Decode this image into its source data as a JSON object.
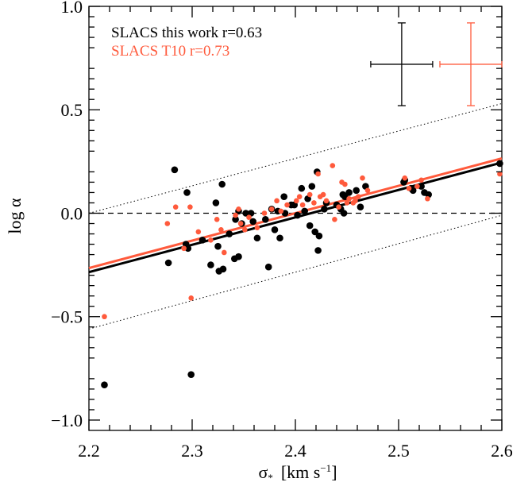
{
  "chart_data": {
    "type": "scatter",
    "xlabel": "σ",
    "xlabel_sub": "*",
    "xlabel_unit": "[km s",
    "xlabel_unit_sup": "−1",
    "xlabel_unit_close": "]",
    "ylabel": "log α",
    "xlim": [
      2.2,
      2.6
    ],
    "ylim": [
      -1.05,
      1.0
    ],
    "xticks": [
      2.2,
      2.3,
      2.4,
      2.5,
      2.6
    ],
    "xtick_labels": [
      "2.2",
      "2.3",
      "2.4",
      "2.5",
      "2.6"
    ],
    "yticks": [
      1.0,
      0.5,
      0.0,
      -0.5,
      -1.0
    ],
    "ytick_labels": [
      "1.0",
      "0.5",
      "0.0",
      "−0.5",
      "−1.0"
    ],
    "grid": false,
    "legend_position": "top-left",
    "series": [
      {
        "name": "SLACS this work  r=0.63",
        "color": "#000000",
        "points": [
          [
            2.215,
            -0.83
          ],
          [
            2.283,
            0.21
          ],
          [
            2.295,
            0.1
          ],
          [
            2.294,
            -0.15
          ],
          [
            2.296,
            -0.17
          ],
          [
            2.299,
            -0.78
          ],
          [
            2.277,
            -0.24
          ],
          [
            2.31,
            -0.13
          ],
          [
            2.318,
            -0.25
          ],
          [
            2.323,
            0.05
          ],
          [
            2.325,
            -0.16
          ],
          [
            2.326,
            -0.28
          ],
          [
            2.329,
            0.14
          ],
          [
            2.33,
            -0.27
          ],
          [
            2.336,
            -0.1
          ],
          [
            2.341,
            -0.22
          ],
          [
            2.342,
            -0.03
          ],
          [
            2.345,
            0.01
          ],
          [
            2.345,
            -0.21
          ],
          [
            2.348,
            -0.05
          ],
          [
            2.352,
            0.0
          ],
          [
            2.357,
            0.0
          ],
          [
            2.359,
            -0.04
          ],
          [
            2.363,
            -0.12
          ],
          [
            2.371,
            -0.03
          ],
          [
            2.374,
            -0.26
          ],
          [
            2.377,
            0.02
          ],
          [
            2.38,
            -0.08
          ],
          [
            2.383,
            0.01
          ],
          [
            2.385,
            -0.12
          ],
          [
            2.389,
            0.08
          ],
          [
            2.39,
            0.0
          ],
          [
            2.396,
            0.04
          ],
          [
            2.399,
            0.04
          ],
          [
            2.402,
            -0.01
          ],
          [
            2.406,
            0.12
          ],
          [
            2.409,
            0.01
          ],
          [
            2.412,
            0.07
          ],
          [
            2.414,
            -0.06
          ],
          [
            2.416,
            0.13
          ],
          [
            2.419,
            -0.09
          ],
          [
            2.421,
            0.2
          ],
          [
            2.422,
            -0.18
          ],
          [
            2.423,
            -0.11
          ],
          [
            2.428,
            0.02
          ],
          [
            2.43,
            0.05
          ],
          [
            2.44,
            0.04
          ],
          [
            2.444,
            0.02
          ],
          [
            2.446,
            0.09
          ],
          [
            2.447,
            0.0
          ],
          [
            2.448,
            0.08
          ],
          [
            2.452,
            0.1
          ],
          [
            2.459,
            0.11
          ],
          [
            2.463,
            0.03
          ],
          [
            2.468,
            0.13
          ],
          [
            2.505,
            0.15
          ],
          [
            2.506,
            0.16
          ],
          [
            2.512,
            0.12
          ],
          [
            2.514,
            0.11
          ],
          [
            2.522,
            0.13
          ],
          [
            2.525,
            0.1
          ],
          [
            2.529,
            0.09
          ],
          [
            2.598,
            0.24
          ]
        ]
      },
      {
        "name": "SLACS T10  r=0.73",
        "color": "#ff5a3c",
        "points": [
          [
            2.215,
            -0.5
          ],
          [
            2.276,
            -0.05
          ],
          [
            2.284,
            0.03
          ],
          [
            2.298,
            0.03
          ],
          [
            2.299,
            -0.41
          ],
          [
            2.292,
            -0.17
          ],
          [
            2.306,
            -0.09
          ],
          [
            2.318,
            -0.13
          ],
          [
            2.324,
            -0.03
          ],
          [
            2.328,
            -0.08
          ],
          [
            2.331,
            -0.19
          ],
          [
            2.342,
            -0.01
          ],
          [
            2.345,
            0.02
          ],
          [
            2.347,
            -0.05
          ],
          [
            2.351,
            -0.08
          ],
          [
            2.355,
            -0.02
          ],
          [
            2.363,
            -0.07
          ],
          [
            2.37,
            0.0
          ],
          [
            2.377,
            0.02
          ],
          [
            2.382,
            0.06
          ],
          [
            2.386,
            0.01
          ],
          [
            2.392,
            0.04
          ],
          [
            2.401,
            0.06
          ],
          [
            2.404,
            0.08
          ],
          [
            2.407,
            0.04
          ],
          [
            2.414,
            0.09
          ],
          [
            2.418,
            0.05
          ],
          [
            2.422,
            0.19
          ],
          [
            2.424,
            0.08
          ],
          [
            2.427,
            0.09
          ],
          [
            2.43,
            0.06
          ],
          [
            2.436,
            0.23
          ],
          [
            2.438,
            -0.03
          ],
          [
            2.442,
            0.03
          ],
          [
            2.445,
            0.15
          ],
          [
            2.448,
            0.14
          ],
          [
            2.45,
            0.05
          ],
          [
            2.452,
            0.07
          ],
          [
            2.456,
            0.05
          ],
          [
            2.458,
            0.06
          ],
          [
            2.461,
            0.08
          ],
          [
            2.465,
            0.17
          ],
          [
            2.47,
            0.11
          ],
          [
            2.506,
            0.17
          ],
          [
            2.51,
            0.12
          ],
          [
            2.518,
            0.13
          ],
          [
            2.522,
            0.16
          ],
          [
            2.528,
            0.07
          ],
          [
            2.598,
            0.19
          ]
        ]
      }
    ],
    "fit_lines": [
      {
        "series": "SLACS this work",
        "color": "#000000",
        "x": [
          2.2,
          2.6
        ],
        "y": [
          -0.285,
          0.245
        ]
      },
      {
        "series": "SLACS T10",
        "color": "#ff5a3c",
        "x": [
          2.2,
          2.6
        ],
        "y": [
          -0.265,
          0.265
        ]
      }
    ],
    "reference_lines": [
      {
        "style": "dashed",
        "x": [
          2.2,
          2.6
        ],
        "y": [
          0.0,
          0.0
        ]
      },
      {
        "style": "dotted",
        "x": [
          2.2,
          2.6
        ],
        "y": [
          0.0,
          0.53
        ]
      },
      {
        "style": "dotted",
        "x": [
          2.2,
          2.6
        ],
        "y": [
          -0.56,
          -0.01
        ]
      }
    ],
    "error_bars": [
      {
        "series": "SLACS this work",
        "color": "#000000",
        "center": [
          2.503,
          0.72
        ],
        "xerr": 0.03,
        "yerr": 0.2
      },
      {
        "series": "SLACS T10",
        "color": "#ff5a3c",
        "center": [
          2.57,
          0.72
        ],
        "xerr": 0.03,
        "yerr": 0.2
      }
    ]
  }
}
